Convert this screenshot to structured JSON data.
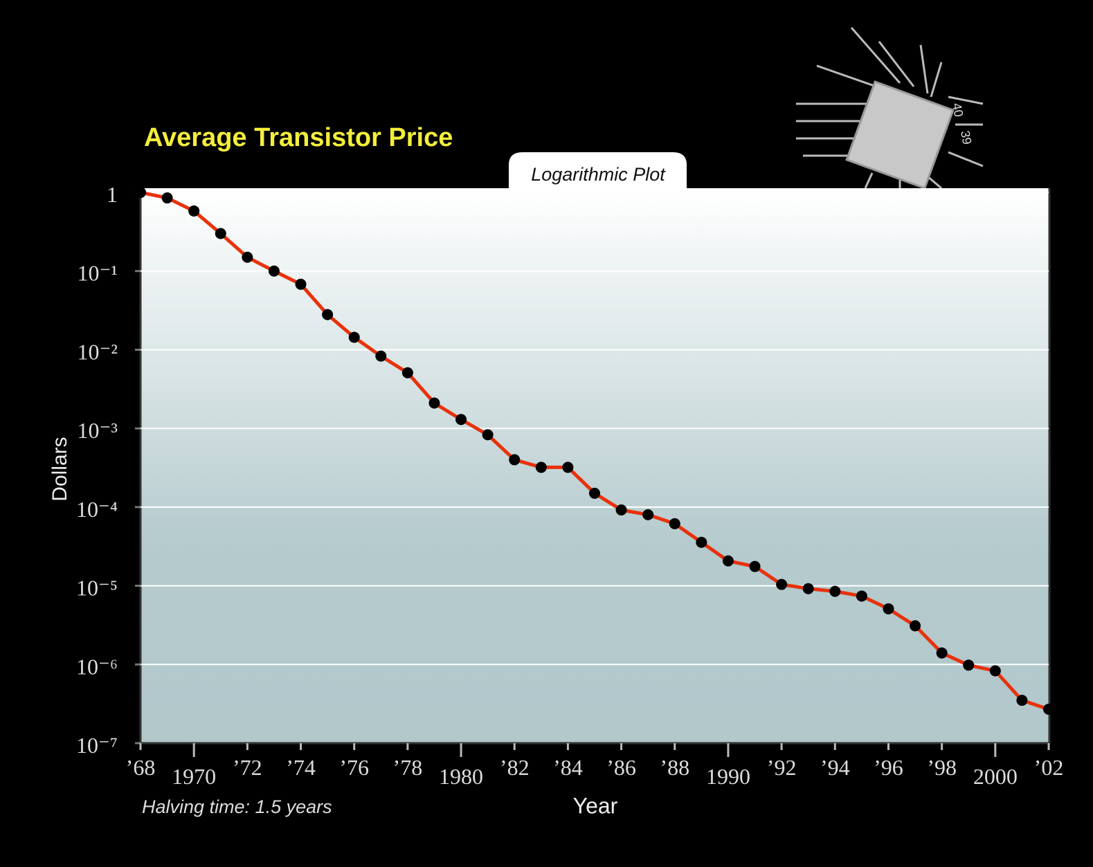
{
  "chart_data": {
    "type": "line",
    "title": "Average Transistor Price",
    "subtitle": "Logarithmic Plot",
    "y_label": "Dollars",
    "x_label": "Year",
    "annotation": "Halving time: 1.5 years",
    "chip_pins": [
      "40",
      "39"
    ],
    "log_scale_y": true,
    "grid": true,
    "color": "#e8320c",
    "marker_color": "#000000",
    "x": [
      1968,
      1969,
      1970,
      1971,
      1972,
      1973,
      1974,
      1975,
      1976,
      1977,
      1978,
      1979,
      1980,
      1981,
      1982,
      1983,
      1984,
      1985,
      1986,
      1987,
      1988,
      1989,
      1990,
      1991,
      1992,
      1993,
      1994,
      1995,
      1996,
      1997,
      1998,
      1999,
      2000,
      2001,
      2002
    ],
    "values": [
      1,
      0.85,
      0.58,
      0.3,
      0.15,
      0.1,
      0.068,
      0.028,
      0.0144,
      0.0083,
      0.0051,
      0.0021,
      0.0013,
      0.00083,
      0.0004,
      0.00032,
      0.00032,
      0.00015,
      9.2e-05,
      8e-05,
      6.15e-05,
      3.57e-05,
      2.07e-05,
      1.76e-05,
      1.04e-05,
      9.2e-06,
      8.5e-06,
      7.4e-06,
      5.1e-06,
      3.1e-06,
      1.4e-06,
      9.8e-07,
      8.3e-07,
      3.5e-07,
      2.7e-07
    ],
    "xlim": [
      1968,
      2002
    ],
    "ylim": [
      1e-07,
      1.13
    ],
    "xticks": [
      {
        "value": 1968,
        "label": "’68"
      },
      1970,
      {
        "value": 1972,
        "label": "’72"
      },
      {
        "value": 1974,
        "label": "’74"
      },
      {
        "value": 1976,
        "label": "’76"
      },
      {
        "value": 1978,
        "label": "’78"
      },
      1980,
      {
        "value": 1982,
        "label": "’82"
      },
      {
        "value": 1984,
        "label": "’84"
      },
      {
        "value": 1986,
        "label": "’86"
      },
      {
        "value": 1988,
        "label": "’88"
      },
      1990,
      {
        "value": 1992,
        "label": "’92"
      },
      {
        "value": 1994,
        "label": "’94"
      },
      {
        "value": 1996,
        "label": "’96"
      },
      {
        "value": 1998,
        "label": "’98"
      },
      2000,
      {
        "value": 2002,
        "label": "’02"
      }
    ],
    "yticks": [
      1,
      {
        "value": 0.1,
        "label": "10⁻¹"
      },
      {
        "value": 0.01,
        "label": "10⁻²"
      },
      {
        "value": 0.001,
        "label": "10⁻³"
      },
      {
        "value": 0.0001,
        "label": "10⁻⁴"
      },
      {
        "value": 1e-05,
        "label": "10⁻⁵"
      },
      {
        "value": 1e-06,
        "label": "10⁻⁶"
      },
      {
        "value": 1e-07,
        "label": "10⁻⁷"
      }
    ]
  }
}
